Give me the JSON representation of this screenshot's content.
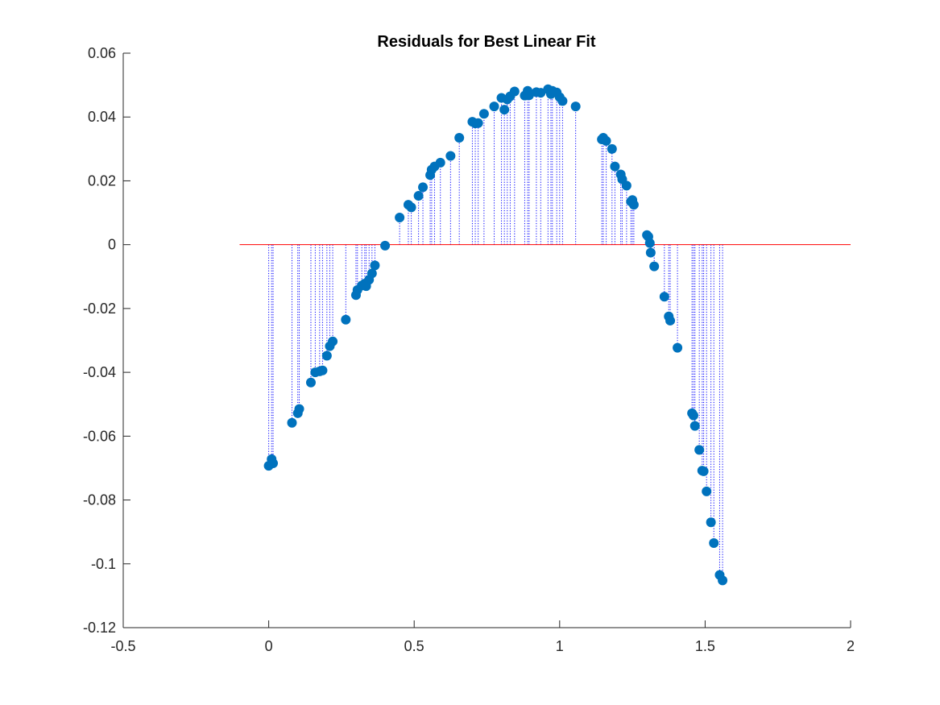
{
  "chart_data": {
    "type": "scatter",
    "title": "Residuals for Best Linear Fit",
    "xlabel": "",
    "ylabel": "",
    "xlim": [
      -0.5,
      2
    ],
    "ylim": [
      -0.12,
      0.06
    ],
    "xticks": [
      -0.5,
      0,
      0.5,
      1,
      1.5,
      2
    ],
    "xtick_labels": [
      "-0.5",
      "0",
      "0.5",
      "1",
      "1.5",
      "2"
    ],
    "yticks": [
      -0.12,
      -0.1,
      -0.08,
      -0.06,
      -0.04,
      -0.02,
      0,
      0.02,
      0.04,
      0.06
    ],
    "ytick_labels": [
      "-0.12",
      "-0.1",
      "-0.08",
      "-0.06",
      "-0.04",
      "-0.02",
      "0",
      "0.02",
      "0.04",
      "0.06"
    ],
    "grid": false,
    "legend": "none",
    "colors": {
      "points": "#0072bd",
      "stems": "#0000ff",
      "zero_line": "#ff0000",
      "axes": "#262626"
    },
    "zero_line": {
      "x": [
        -0.1,
        2
      ],
      "y": 0
    },
    "series": [
      {
        "style": "markers with dotted stems to y=0",
        "points": [
          [
            0.0,
            -0.0693
          ],
          [
            0.01,
            -0.0672
          ],
          [
            0.015,
            -0.0685
          ],
          [
            0.08,
            -0.0558
          ],
          [
            0.1,
            -0.0528
          ],
          [
            0.105,
            -0.0515
          ],
          [
            0.145,
            -0.0432
          ],
          [
            0.16,
            -0.04
          ],
          [
            0.175,
            -0.0397
          ],
          [
            0.185,
            -0.0394
          ],
          [
            0.2,
            -0.0348
          ],
          [
            0.21,
            -0.0318
          ],
          [
            0.22,
            -0.0303
          ],
          [
            0.265,
            -0.0235
          ],
          [
            0.3,
            -0.0158
          ],
          [
            0.305,
            -0.0142
          ],
          [
            0.32,
            -0.0128
          ],
          [
            0.33,
            -0.0122
          ],
          [
            0.335,
            -0.013
          ],
          [
            0.345,
            -0.011
          ],
          [
            0.355,
            -0.009
          ],
          [
            0.365,
            -0.0065
          ],
          [
            0.4,
            -0.0003
          ],
          [
            0.45,
            0.0085
          ],
          [
            0.48,
            0.0125
          ],
          [
            0.49,
            0.0117
          ],
          [
            0.515,
            0.0153
          ],
          [
            0.53,
            0.018
          ],
          [
            0.555,
            0.0218
          ],
          [
            0.56,
            0.0235
          ],
          [
            0.57,
            0.0245
          ],
          [
            0.59,
            0.0257
          ],
          [
            0.625,
            0.0278
          ],
          [
            0.655,
            0.0335
          ],
          [
            0.7,
            0.0385
          ],
          [
            0.71,
            0.038
          ],
          [
            0.72,
            0.0381
          ],
          [
            0.74,
            0.041
          ],
          [
            0.775,
            0.0433
          ],
          [
            0.8,
            0.046
          ],
          [
            0.81,
            0.0423
          ],
          [
            0.82,
            0.0455
          ],
          [
            0.83,
            0.0465
          ],
          [
            0.845,
            0.048
          ],
          [
            0.88,
            0.0467
          ],
          [
            0.89,
            0.0482
          ],
          [
            0.895,
            0.0468
          ],
          [
            0.92,
            0.0478
          ],
          [
            0.935,
            0.0476
          ],
          [
            0.96,
            0.0487
          ],
          [
            0.97,
            0.0472
          ],
          [
            0.975,
            0.0482
          ],
          [
            0.99,
            0.0477
          ],
          [
            1.0,
            0.0462
          ],
          [
            1.01,
            0.045
          ],
          [
            1.055,
            0.0433
          ],
          [
            1.145,
            0.033
          ],
          [
            1.15,
            0.0335
          ],
          [
            1.16,
            0.0325
          ],
          [
            1.18,
            0.03
          ],
          [
            1.19,
            0.0245
          ],
          [
            1.21,
            0.022
          ],
          [
            1.215,
            0.0205
          ],
          [
            1.23,
            0.0185
          ],
          [
            1.245,
            0.0135
          ],
          [
            1.25,
            0.014
          ],
          [
            1.255,
            0.0125
          ],
          [
            1.3,
            0.003
          ],
          [
            1.305,
            0.0025
          ],
          [
            1.31,
            0.0005
          ],
          [
            1.313,
            -0.0025
          ],
          [
            1.325,
            -0.0068
          ],
          [
            1.36,
            -0.0163
          ],
          [
            1.375,
            -0.0225
          ],
          [
            1.38,
            -0.0238
          ],
          [
            1.405,
            -0.0323
          ],
          [
            1.455,
            -0.0528
          ],
          [
            1.46,
            -0.0535
          ],
          [
            1.465,
            -0.0568
          ],
          [
            1.48,
            -0.0643
          ],
          [
            1.49,
            -0.0708
          ],
          [
            1.495,
            -0.071
          ],
          [
            1.505,
            -0.0773
          ],
          [
            1.52,
            -0.087
          ],
          [
            1.53,
            -0.0935
          ],
          [
            1.55,
            -0.1035
          ],
          [
            1.56,
            -0.1052
          ]
        ]
      }
    ]
  }
}
